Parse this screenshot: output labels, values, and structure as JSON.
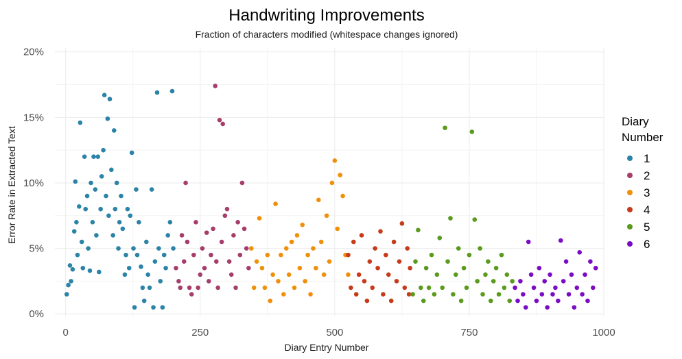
{
  "chart_data": {
    "type": "scatter",
    "title": "Handwriting Improvements",
    "subtitle": "Fraction of characters modified (whitespace changes ignored)",
    "xlabel": "Diary Entry Number",
    "ylabel": "Error Rate in Extracted Text",
    "xlim": [
      -20,
      1000
    ],
    "ylim": [
      -0.002,
      0.203
    ],
    "x_ticks": [
      0,
      250,
      500,
      750,
      1000
    ],
    "x_tick_labels": [
      "0",
      "250",
      "500",
      "750",
      "1000"
    ],
    "y_ticks": [
      0,
      0.05,
      0.1,
      0.15,
      0.2
    ],
    "y_tick_labels": [
      "0%",
      "5%",
      "10%",
      "15%",
      "20%"
    ],
    "grid": true,
    "legend": {
      "title_line1": "Diary",
      "title_line2": "Number",
      "placement": "right"
    },
    "series": [
      {
        "name": "1",
        "color": "#2b83a8",
        "points": [
          [
            2,
            0.015
          ],
          [
            5,
            0.022
          ],
          [
            8,
            0.037
          ],
          [
            10,
            0.025
          ],
          [
            13,
            0.034
          ],
          [
            16,
            0.063
          ],
          [
            18,
            0.101
          ],
          [
            20,
            0.07
          ],
          [
            22,
            0.045
          ],
          [
            25,
            0.082
          ],
          [
            27,
            0.146
          ],
          [
            30,
            0.055
          ],
          [
            32,
            0.035
          ],
          [
            35,
            0.12
          ],
          [
            37,
            0.08
          ],
          [
            40,
            0.09
          ],
          [
            42,
            0.05
          ],
          [
            45,
            0.033
          ],
          [
            47,
            0.1
          ],
          [
            50,
            0.07
          ],
          [
            52,
            0.12
          ],
          [
            55,
            0.095
          ],
          [
            57,
            0.06
          ],
          [
            60,
            0.12
          ],
          [
            62,
            0.032
          ],
          [
            65,
            0.08
          ],
          [
            67,
            0.105
          ],
          [
            70,
            0.125
          ],
          [
            72,
            0.167
          ],
          [
            75,
            0.09
          ],
          [
            78,
            0.149
          ],
          [
            80,
            0.075
          ],
          [
            82,
            0.164
          ],
          [
            85,
            0.11
          ],
          [
            88,
            0.06
          ],
          [
            90,
            0.14
          ],
          [
            92,
            0.08
          ],
          [
            95,
            0.1
          ],
          [
            98,
            0.05
          ],
          [
            100,
            0.07
          ],
          [
            103,
            0.09
          ],
          [
            106,
            0.065
          ],
          [
            110,
            0.03
          ],
          [
            112,
            0.045
          ],
          [
            115,
            0.08
          ],
          [
            118,
            0.035
          ],
          [
            120,
            0.075
          ],
          [
            123,
            0.123
          ],
          [
            126,
            0.05
          ],
          [
            128,
            0.005
          ],
          [
            131,
            0.095
          ],
          [
            133,
            0.045
          ],
          [
            136,
            0.07
          ],
          [
            140,
            0.036
          ],
          [
            143,
            0.02
          ],
          [
            146,
            0.01
          ],
          [
            150,
            0.055
          ],
          [
            153,
            0.03
          ],
          [
            156,
            0.02
          ],
          [
            160,
            0.095
          ],
          [
            163,
            0.005
          ],
          [
            166,
            0.04
          ],
          [
            170,
            0.169
          ],
          [
            173,
            0.05
          ],
          [
            176,
            0.025
          ],
          [
            180,
            0.005
          ],
          [
            183,
            0.045
          ],
          [
            186,
            0.035
          ],
          [
            190,
            0.06
          ],
          [
            194,
            0.07
          ],
          [
            198,
            0.17
          ],
          [
            200,
            0.05
          ]
        ]
      },
      {
        "name": "2",
        "color": "#a63e6b",
        "points": [
          [
            205,
            0.035
          ],
          [
            210,
            0.025
          ],
          [
            213,
            0.02
          ],
          [
            216,
            0.06
          ],
          [
            220,
            0.04
          ],
          [
            223,
            0.1
          ],
          [
            226,
            0.055
          ],
          [
            230,
            0.02
          ],
          [
            234,
            0.015
          ],
          [
            238,
            0.045
          ],
          [
            242,
            0.07
          ],
          [
            246,
            0.02
          ],
          [
            250,
            0.03
          ],
          [
            254,
            0.05
          ],
          [
            258,
            0.035
          ],
          [
            262,
            0.062
          ],
          [
            266,
            0.025
          ],
          [
            270,
            0.045
          ],
          [
            274,
            0.065
          ],
          [
            278,
            0.174
          ],
          [
            280,
            0.04
          ],
          [
            283,
            0.02
          ],
          [
            286,
            0.148
          ],
          [
            290,
            0.055
          ],
          [
            292,
            0.145
          ],
          [
            296,
            0.075
          ],
          [
            300,
            0.08
          ],
          [
            304,
            0.04
          ],
          [
            308,
            0.03
          ],
          [
            312,
            0.06
          ],
          [
            316,
            0.02
          ],
          [
            320,
            0.07
          ],
          [
            324,
            0.045
          ],
          [
            328,
            0.1
          ],
          [
            332,
            0.065
          ],
          [
            336,
            0.05
          ],
          [
            340,
            0.035
          ]
        ]
      },
      {
        "name": "3",
        "color": "#f0900a",
        "points": [
          [
            345,
            0.05
          ],
          [
            350,
            0.02
          ],
          [
            355,
            0.04
          ],
          [
            360,
            0.073
          ],
          [
            365,
            0.035
          ],
          [
            370,
            0.02
          ],
          [
            375,
            0.045
          ],
          [
            380,
            0.01
          ],
          [
            385,
            0.03
          ],
          [
            390,
            0.084
          ],
          [
            395,
            0.025
          ],
          [
            400,
            0.045
          ],
          [
            405,
            0.015
          ],
          [
            410,
            0.05
          ],
          [
            415,
            0.03
          ],
          [
            420,
            0.055
          ],
          [
            425,
            0.02
          ],
          [
            430,
            0.06
          ],
          [
            435,
            0.035
          ],
          [
            440,
            0.068
          ],
          [
            445,
            0.025
          ],
          [
            450,
            0.045
          ],
          [
            455,
            0.015
          ],
          [
            460,
            0.05
          ],
          [
            465,
            0.035
          ],
          [
            470,
            0.087
          ],
          [
            475,
            0.055
          ],
          [
            480,
            0.03
          ],
          [
            485,
            0.075
          ],
          [
            490,
            0.04
          ],
          [
            495,
            0.1
          ],
          [
            500,
            0.117
          ],
          [
            505,
            0.065
          ],
          [
            510,
            0.106
          ],
          [
            515,
            0.09
          ],
          [
            520,
            0.045
          ],
          [
            525,
            0.03
          ]
        ]
      },
      {
        "name": "4",
        "color": "#c63b1a",
        "points": [
          [
            525,
            0.045
          ],
          [
            530,
            0.02
          ],
          [
            535,
            0.055
          ],
          [
            540,
            0.015
          ],
          [
            545,
            0.03
          ],
          [
            550,
            0.06
          ],
          [
            555,
            0.025
          ],
          [
            560,
            0.01
          ],
          [
            565,
            0.04
          ],
          [
            570,
            0.02
          ],
          [
            575,
            0.05
          ],
          [
            580,
            0.035
          ],
          [
            585,
            0.063
          ],
          [
            590,
            0.015
          ],
          [
            595,
            0.045
          ],
          [
            600,
            0.03
          ],
          [
            605,
            0.01
          ],
          [
            610,
            0.055
          ],
          [
            615,
            0.025
          ],
          [
            620,
            0.04
          ],
          [
            625,
            0.069
          ],
          [
            630,
            0.02
          ],
          [
            635,
            0.05
          ],
          [
            638,
            0.015
          ],
          [
            640,
            0.035
          ]
        ]
      },
      {
        "name": "5",
        "color": "#5a9a1c",
        "points": [
          [
            645,
            0.015
          ],
          [
            650,
            0.04
          ],
          [
            655,
            0.064
          ],
          [
            660,
            0.02
          ],
          [
            665,
            0.01
          ],
          [
            670,
            0.035
          ],
          [
            675,
            0.02
          ],
          [
            680,
            0.045
          ],
          [
            685,
            0.015
          ],
          [
            690,
            0.03
          ],
          [
            695,
            0.058
          ],
          [
            700,
            0.02
          ],
          [
            705,
            0.142
          ],
          [
            710,
            0.04
          ],
          [
            715,
            0.073
          ],
          [
            720,
            0.015
          ],
          [
            725,
            0.03
          ],
          [
            730,
            0.05
          ],
          [
            735,
            0.01
          ],
          [
            740,
            0.035
          ],
          [
            745,
            0.02
          ],
          [
            750,
            0.045
          ],
          [
            755,
            0.139
          ],
          [
            760,
            0.072
          ],
          [
            765,
            0.025
          ],
          [
            770,
            0.05
          ],
          [
            775,
            0.015
          ],
          [
            780,
            0.03
          ],
          [
            785,
            0.04
          ],
          [
            790,
            0.01
          ],
          [
            795,
            0.025
          ],
          [
            800,
            0.035
          ],
          [
            805,
            0.015
          ],
          [
            810,
            0.045
          ],
          [
            815,
            0.02
          ],
          [
            820,
            0.03
          ],
          [
            825,
            0.01
          ],
          [
            830,
            0.025
          ]
        ]
      },
      {
        "name": "6",
        "color": "#7a0cc5",
        "points": [
          [
            835,
            0.02
          ],
          [
            840,
            0.01
          ],
          [
            845,
            0.025
          ],
          [
            850,
            0.015
          ],
          [
            855,
            0.005
          ],
          [
            860,
            0.055
          ],
          [
            865,
            0.03
          ],
          [
            870,
            0.02
          ],
          [
            875,
            0.01
          ],
          [
            880,
            0.035
          ],
          [
            885,
            0.015
          ],
          [
            890,
            0.025
          ],
          [
            895,
            0.005
          ],
          [
            900,
            0.03
          ],
          [
            905,
            0.015
          ],
          [
            910,
            0.02
          ],
          [
            915,
            0.01
          ],
          [
            920,
            0.056
          ],
          [
            925,
            0.025
          ],
          [
            930,
            0.04
          ],
          [
            935,
            0.015
          ],
          [
            940,
            0.03
          ],
          [
            945,
            0.005
          ],
          [
            950,
            0.02
          ],
          [
            955,
            0.047
          ],
          [
            960,
            0.015
          ],
          [
            965,
            0.03
          ],
          [
            970,
            0.01
          ],
          [
            975,
            0.04
          ],
          [
            980,
            0.02
          ],
          [
            985,
            0.035
          ]
        ]
      }
    ]
  }
}
